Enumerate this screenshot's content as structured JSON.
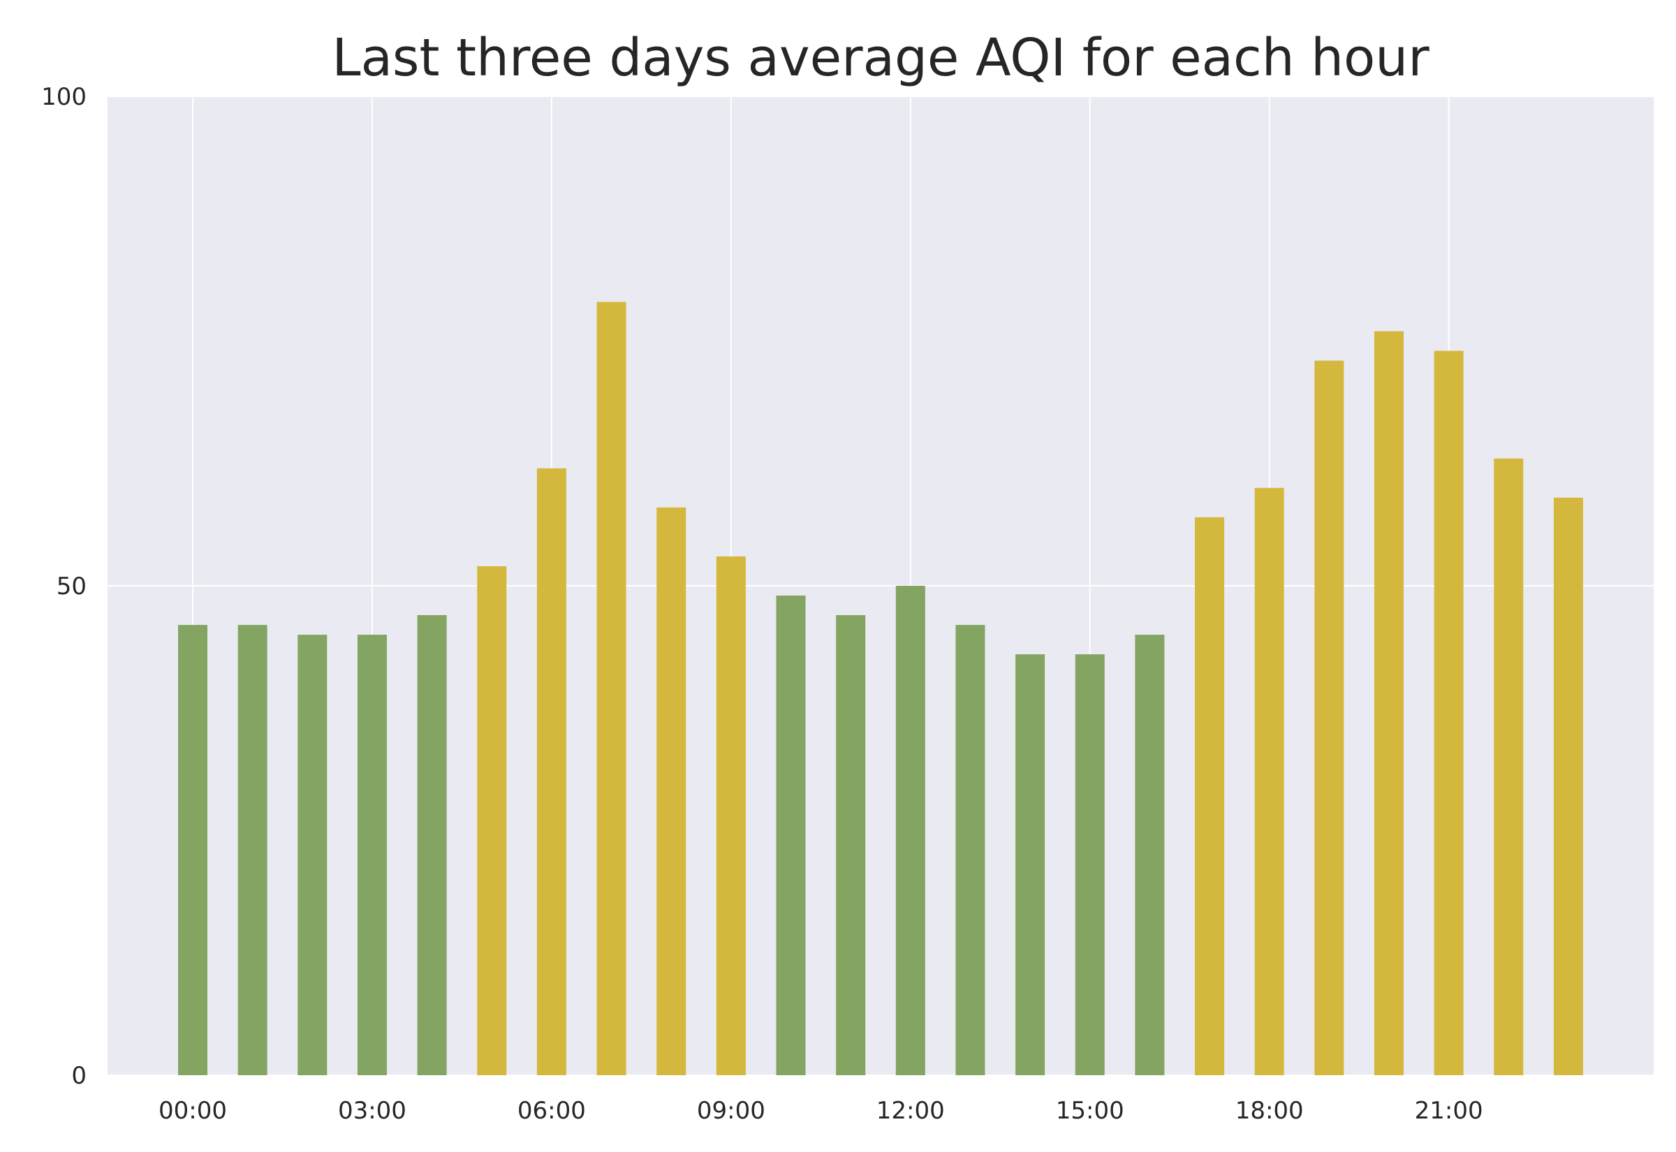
{
  "chart_data": {
    "type": "bar",
    "title": "Last three days average AQI for each hour",
    "xlabel": "",
    "ylabel": "",
    "categories": [
      "00:00",
      "01:00",
      "02:00",
      "03:00",
      "04:00",
      "05:00",
      "06:00",
      "07:00",
      "08:00",
      "09:00",
      "10:00",
      "11:00",
      "12:00",
      "13:00",
      "14:00",
      "15:00",
      "16:00",
      "17:00",
      "18:00",
      "19:00",
      "20:00",
      "21:00",
      "22:00",
      "23:00"
    ],
    "values": [
      46,
      46,
      45,
      45,
      47,
      52,
      62,
      79,
      58,
      53,
      49,
      47,
      50,
      46,
      43,
      43,
      45,
      57,
      60,
      73,
      76,
      74,
      63,
      59
    ],
    "x_tick_labels": [
      "00:00",
      "03:00",
      "06:00",
      "09:00",
      "12:00",
      "15:00",
      "18:00",
      "21:00"
    ],
    "x_tick_indices": [
      0,
      3,
      6,
      9,
      12,
      15,
      18,
      21
    ],
    "y_tick_labels": [
      "0",
      "50",
      "100"
    ],
    "y_ticks": [
      0,
      50,
      100
    ],
    "ylim": [
      0,
      100
    ],
    "grid": true,
    "legend": "none",
    "colors": {
      "good": "#84a561",
      "moderate": "#d4b83d",
      "plot_background": "#eaeaf2",
      "grid": "#ffffff",
      "text": "#262626"
    },
    "color_threshold": 50
  }
}
